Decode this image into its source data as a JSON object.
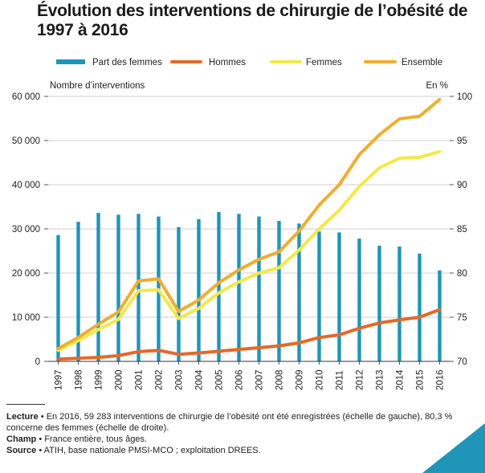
{
  "title": "Évolution des interventions de chirurgie de l’obésité de 1997 à 2016",
  "colors": {
    "bar": "#1f95b8",
    "hommes": "#e4692a",
    "femmes": "#f3e84a",
    "ensemble": "#f0ae2e",
    "grid": "#cfcfcf",
    "corner": "#1f95b8"
  },
  "chart_data": {
    "type": "bar+line",
    "categories": [
      "1997",
      "1998",
      "1999",
      "2000",
      "2001",
      "2002",
      "2003",
      "2004",
      "2005",
      "2006",
      "2007",
      "2008",
      "2009",
      "2010",
      "2011",
      "2012",
      "2013",
      "2014",
      "2015",
      "2016"
    ],
    "legend": [
      "Part des femmes",
      "Hommes",
      "Femmes",
      "Ensemble"
    ],
    "legend_position": "top",
    "y_left": {
      "label": "Nombre d’interventions",
      "ylim": [
        0,
        60000
      ],
      "ticks": [
        "0",
        "10 000",
        "20 000",
        "30 000",
        "40 000",
        "50 000",
        "60 000"
      ]
    },
    "y_right": {
      "label": "En %",
      "ylim": [
        70,
        100
      ],
      "ticks": [
        "70",
        "75",
        "80",
        "85",
        "90",
        "95",
        "100"
      ]
    },
    "grid": "horizontal",
    "series": [
      {
        "name": "Part des femmes",
        "type": "bar",
        "axis": "right",
        "values": [
          84.3,
          85.8,
          86.8,
          86.6,
          86.7,
          86.4,
          85.2,
          86.1,
          86.9,
          86.7,
          86.4,
          85.9,
          85.6,
          84.7,
          84.6,
          83.9,
          83.1,
          83.0,
          82.2,
          80.3
        ]
      },
      {
        "name": "Hommes",
        "type": "line",
        "axis": "left",
        "values": [
          500,
          700,
          900,
          1300,
          2200,
          2500,
          1600,
          1900,
          2300,
          2700,
          3100,
          3500,
          4200,
          5400,
          6000,
          7500,
          8700,
          9400,
          10000,
          11700
        ]
      },
      {
        "name": "Femmes",
        "type": "line",
        "axis": "left",
        "values": [
          2500,
          4700,
          7200,
          9500,
          16000,
          16200,
          9700,
          12000,
          15500,
          18000,
          20000,
          21200,
          25200,
          30000,
          34200,
          39600,
          43800,
          46000,
          46200,
          47500
        ]
      },
      {
        "name": "Ensemble",
        "type": "line",
        "axis": "left",
        "values": [
          2900,
          5400,
          8400,
          11200,
          18200,
          18700,
          11300,
          13900,
          17800,
          20700,
          23100,
          24800,
          29500,
          35400,
          40000,
          46800,
          51300,
          54900,
          55500,
          59300
        ]
      }
    ]
  },
  "footer": {
    "lecture_label": "Lecture",
    "lecture_text": " • En 2016, 59 283 interventions de chirurgie de l’obésité ont été enregistrées (échelle de gauche), 80,3 % concerne des femmes (échelle de droite).",
    "champ_label": "Champ",
    "champ_text": " • France entière, tous âges.",
    "source_label": "Source",
    "source_text": " • ATIH, base nationale PMSI-MCO ; exploitation DREES."
  }
}
